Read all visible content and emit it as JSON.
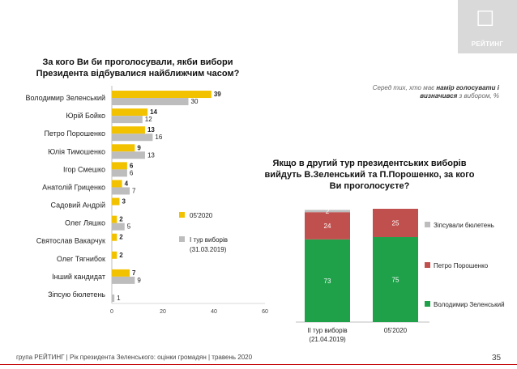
{
  "brand": {
    "name": "РЕЙТИНГ",
    "mark": "☐"
  },
  "chart_data": [
    {
      "type": "bar",
      "orientation": "horizontal",
      "title": "За кого Ви би проголосували, якби вибори Президента відбувалися найближчим часом?",
      "note_prefix": "Серед тих, хто має ",
      "note_bold": "намір голосувати і визначився",
      "note_suffix": " з вибором, %",
      "categories": [
        "Володимир Зеленський",
        "Юрій Бойко",
        "Петро Порошенко",
        "Юлія Тимошенко",
        "Ігор Смешко",
        "Анатолій Гриценко",
        "Садовий Андрій",
        "Олег Ляшко",
        "Святослав Вакарчук",
        "Олег Тягнибок",
        "Інший кандидат",
        "Зіпсую бюлетень"
      ],
      "series": [
        {
          "name": "05'2020",
          "color": "#f2c200",
          "values": [
            39,
            14,
            13,
            9,
            6,
            4,
            3,
            2,
            2,
            2,
            7,
            null
          ]
        },
        {
          "name": "І тур виборів (31.03.2019)",
          "color": "#bdbdbd",
          "values": [
            30,
            12,
            16,
            13,
            6,
            7,
            null,
            5,
            null,
            null,
            9,
            1
          ]
        }
      ],
      "xlim": [
        0,
        60
      ],
      "xticks": [
        0,
        20,
        40,
        60
      ],
      "legend_position": "right"
    },
    {
      "type": "bar",
      "stacked": true,
      "title": "Якщо в другий тур президентських виборів вийдуть В.Зеленський та П.Порошенко, за кого Ви проголосуєте?",
      "categories": [
        "ІІ тур виборів (21.04.2019)",
        "05'2020"
      ],
      "series": [
        {
          "name": "Володимир Зеленський",
          "color": "#1fa14a",
          "values": [
            73,
            75
          ]
        },
        {
          "name": "Петро Порошенко",
          "color": "#c0504d",
          "values": [
            24,
            25
          ]
        },
        {
          "name": "Зіпсували бюлетень",
          "color": "#bdbdbd",
          "values": [
            2,
            null
          ]
        }
      ],
      "ylim": [
        0,
        100
      ],
      "legend_position": "right"
    }
  ],
  "footer": {
    "text": "група РЕЙТИНГ | Рік президента Зеленського: оцінки громадян | травень 2020",
    "page": "35"
  }
}
